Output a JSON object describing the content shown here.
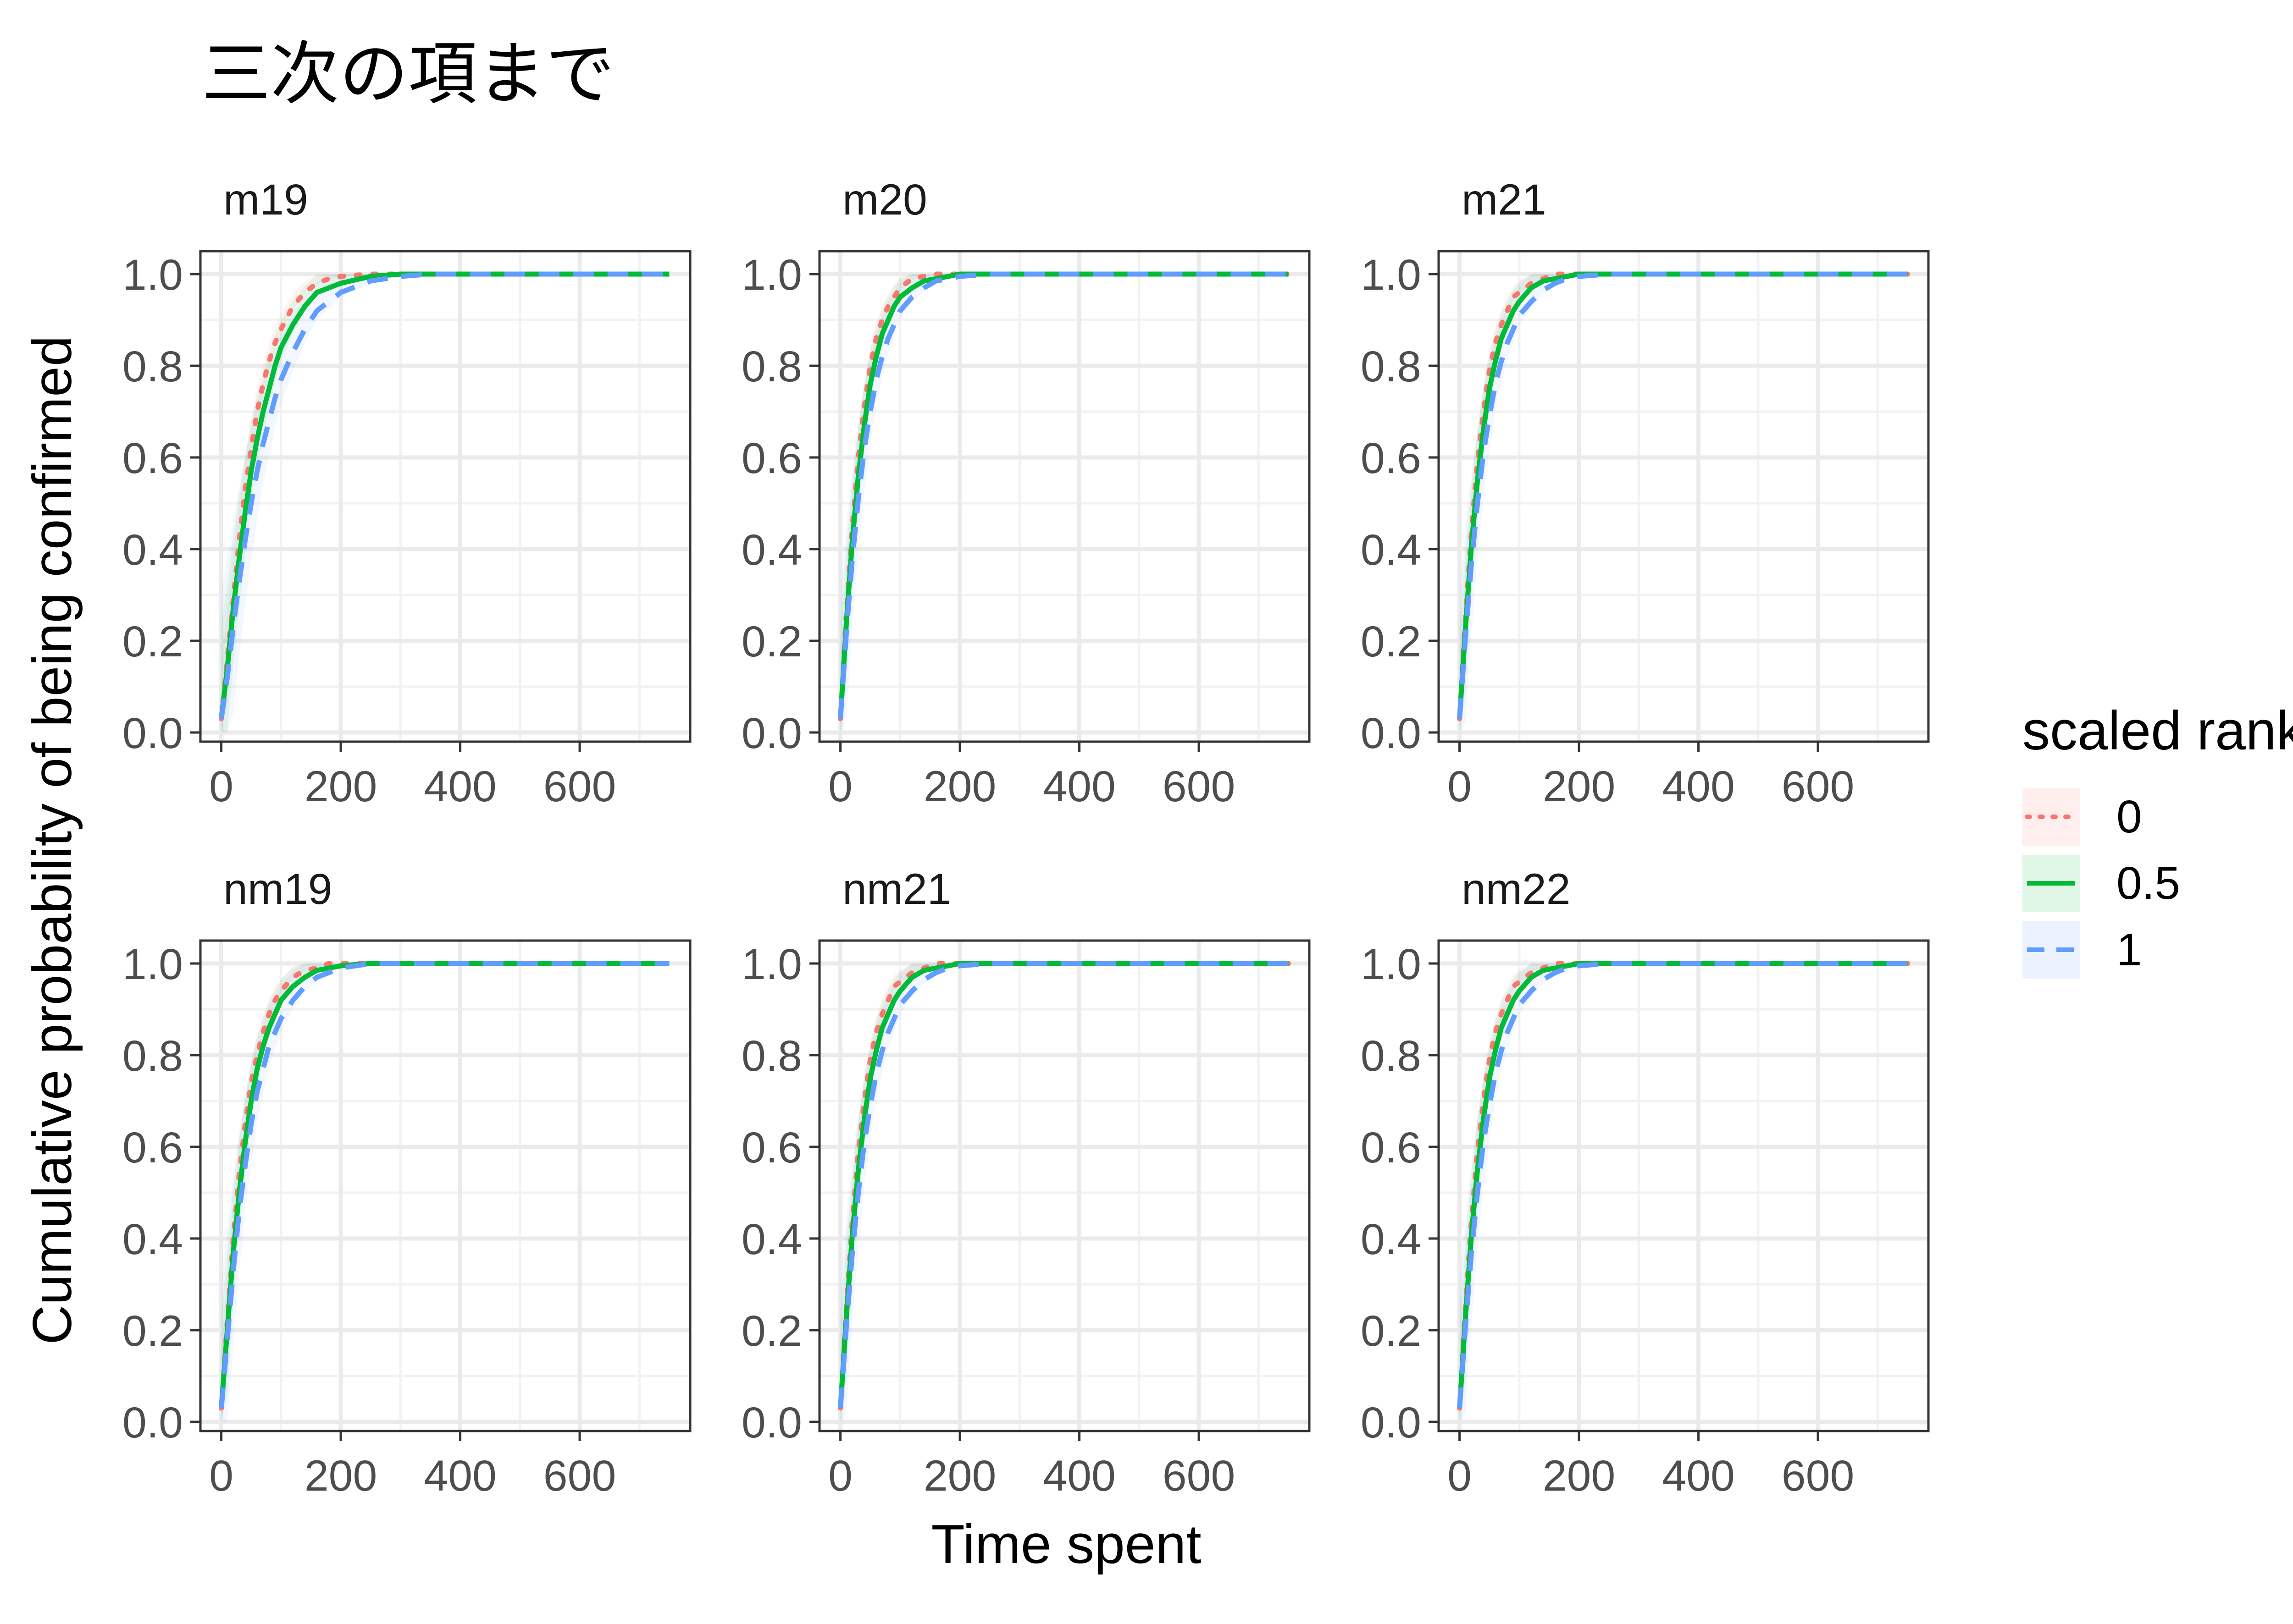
{
  "chart_data": {
    "type": "line",
    "title": "三次の項まで",
    "xlabel": "Time spent",
    "ylabel": "Cumulative probability of being confirmed",
    "xlim": [
      -35,
      785
    ],
    "ylim": [
      -0.02,
      1.05
    ],
    "x_ticks": [
      0,
      200,
      400,
      600
    ],
    "y_ticks": [
      0,
      0.2,
      0.4,
      0.6,
      0.8,
      1.0
    ],
    "x_tick_labels": [
      "0",
      "200",
      "400",
      "600"
    ],
    "y_tick_labels": [
      "0.0",
      "0.2",
      "0.4",
      "0.6",
      "0.8",
      "1.0"
    ],
    "grid": true,
    "ribbons": true,
    "legend": {
      "title": "scaled rank",
      "placement": "right",
      "entries": [
        "0",
        "0.5",
        "1"
      ]
    },
    "colors": {
      "0": "#F8766D",
      "0.5": "#00BA38",
      "1": "#619CFF"
    },
    "line_styles": {
      "0": "dotted",
      "0.5": "solid",
      "1": "dashed"
    },
    "x": [
      0,
      10,
      20,
      30,
      40,
      50,
      60,
      70,
      80,
      90,
      100,
      120,
      140,
      160,
      180,
      200,
      250,
      300,
      350,
      400,
      500,
      600,
      750
    ],
    "panels": [
      {
        "name": "m19",
        "series": [
          {
            "name": "0",
            "values": [
              0.03,
              0.16,
              0.29,
              0.42,
              0.53,
              0.62,
              0.7,
              0.76,
              0.81,
              0.85,
              0.88,
              0.93,
              0.96,
              0.98,
              0.99,
              0.995,
              1.0,
              1.0,
              1.0,
              1.0,
              1.0,
              1.0,
              1.0
            ]
          },
          {
            "name": "0.5",
            "values": [
              0.03,
              0.14,
              0.27,
              0.38,
              0.48,
              0.57,
              0.64,
              0.7,
              0.75,
              0.8,
              0.84,
              0.89,
              0.93,
              0.96,
              0.97,
              0.98,
              0.995,
              1.0,
              1.0,
              1.0,
              1.0,
              1.0,
              1.0
            ]
          },
          {
            "name": "1",
            "values": [
              0.03,
              0.12,
              0.23,
              0.33,
              0.42,
              0.5,
              0.57,
              0.63,
              0.68,
              0.73,
              0.77,
              0.83,
              0.88,
              0.92,
              0.94,
              0.96,
              0.985,
              0.995,
              1.0,
              1.0,
              1.0,
              1.0,
              1.0
            ]
          }
        ]
      },
      {
        "name": "m20",
        "series": [
          {
            "name": "0",
            "values": [
              0.03,
              0.26,
              0.45,
              0.6,
              0.71,
              0.8,
              0.86,
              0.9,
              0.93,
              0.95,
              0.97,
              0.99,
              0.995,
              1.0,
              1.0,
              1.0,
              1.0,
              1.0,
              1.0,
              1.0,
              1.0,
              1.0,
              1.0
            ]
          },
          {
            "name": "0.5",
            "values": [
              0.03,
              0.24,
              0.42,
              0.56,
              0.67,
              0.76,
              0.82,
              0.87,
              0.9,
              0.93,
              0.95,
              0.97,
              0.985,
              0.99,
              0.995,
              1.0,
              1.0,
              1.0,
              1.0,
              1.0,
              1.0,
              1.0,
              1.0
            ]
          },
          {
            "name": "1",
            "values": [
              0.03,
              0.22,
              0.38,
              0.51,
              0.62,
              0.7,
              0.77,
              0.82,
              0.86,
              0.89,
              0.92,
              0.95,
              0.97,
              0.985,
              0.99,
              0.995,
              1.0,
              1.0,
              1.0,
              1.0,
              1.0,
              1.0,
              1.0
            ]
          }
        ]
      },
      {
        "name": "m21",
        "series": [
          {
            "name": "0",
            "values": [
              0.03,
              0.25,
              0.44,
              0.59,
              0.7,
              0.79,
              0.85,
              0.89,
              0.92,
              0.95,
              0.96,
              0.98,
              0.99,
              1.0,
              1.0,
              1.0,
              1.0,
              1.0,
              1.0,
              1.0,
              1.0,
              1.0,
              1.0
            ]
          },
          {
            "name": "0.5",
            "values": [
              0.03,
              0.23,
              0.41,
              0.55,
              0.66,
              0.75,
              0.81,
              0.86,
              0.89,
              0.92,
              0.94,
              0.97,
              0.985,
              0.99,
              0.995,
              1.0,
              1.0,
              1.0,
              1.0,
              1.0,
              1.0,
              1.0,
              1.0
            ]
          },
          {
            "name": "1",
            "values": [
              0.03,
              0.21,
              0.37,
              0.5,
              0.61,
              0.69,
              0.76,
              0.81,
              0.85,
              0.88,
              0.91,
              0.94,
              0.965,
              0.98,
              0.99,
              0.995,
              1.0,
              1.0,
              1.0,
              1.0,
              1.0,
              1.0,
              1.0
            ]
          }
        ]
      },
      {
        "name": "nm19",
        "series": [
          {
            "name": "0",
            "values": [
              0.03,
              0.22,
              0.4,
              0.54,
              0.65,
              0.74,
              0.8,
              0.85,
              0.89,
              0.92,
              0.94,
              0.97,
              0.985,
              0.99,
              1.0,
              1.0,
              1.0,
              1.0,
              1.0,
              1.0,
              1.0,
              1.0,
              1.0
            ]
          },
          {
            "name": "0.5",
            "values": [
              0.03,
              0.2,
              0.37,
              0.5,
              0.61,
              0.7,
              0.77,
              0.82,
              0.86,
              0.89,
              0.92,
              0.95,
              0.97,
              0.985,
              0.99,
              0.995,
              1.0,
              1.0,
              1.0,
              1.0,
              1.0,
              1.0,
              1.0
            ]
          },
          {
            "name": "1",
            "values": [
              0.03,
              0.18,
              0.33,
              0.46,
              0.56,
              0.65,
              0.72,
              0.77,
              0.82,
              0.85,
              0.88,
              0.92,
              0.95,
              0.97,
              0.98,
              0.99,
              1.0,
              1.0,
              1.0,
              1.0,
              1.0,
              1.0,
              1.0
            ]
          }
        ]
      },
      {
        "name": "nm21",
        "series": [
          {
            "name": "0",
            "values": [
              0.03,
              0.25,
              0.44,
              0.59,
              0.7,
              0.79,
              0.85,
              0.89,
              0.92,
              0.95,
              0.96,
              0.98,
              0.99,
              1.0,
              1.0,
              1.0,
              1.0,
              1.0,
              1.0,
              1.0,
              1.0,
              1.0,
              1.0
            ]
          },
          {
            "name": "0.5",
            "values": [
              0.03,
              0.23,
              0.41,
              0.55,
              0.66,
              0.75,
              0.81,
              0.86,
              0.89,
              0.92,
              0.94,
              0.97,
              0.985,
              0.99,
              0.995,
              1.0,
              1.0,
              1.0,
              1.0,
              1.0,
              1.0,
              1.0,
              1.0
            ]
          },
          {
            "name": "1",
            "values": [
              0.03,
              0.21,
              0.37,
              0.5,
              0.61,
              0.69,
              0.76,
              0.81,
              0.85,
              0.88,
              0.91,
              0.94,
              0.965,
              0.98,
              0.99,
              0.995,
              1.0,
              1.0,
              1.0,
              1.0,
              1.0,
              1.0,
              1.0
            ]
          }
        ]
      },
      {
        "name": "nm22",
        "series": [
          {
            "name": "0",
            "values": [
              0.03,
              0.25,
              0.44,
              0.59,
              0.7,
              0.79,
              0.85,
              0.89,
              0.92,
              0.95,
              0.96,
              0.98,
              0.99,
              1.0,
              1.0,
              1.0,
              1.0,
              1.0,
              1.0,
              1.0,
              1.0,
              1.0,
              1.0
            ]
          },
          {
            "name": "0.5",
            "values": [
              0.03,
              0.23,
              0.41,
              0.55,
              0.66,
              0.75,
              0.81,
              0.86,
              0.89,
              0.92,
              0.94,
              0.97,
              0.985,
              0.99,
              0.995,
              1.0,
              1.0,
              1.0,
              1.0,
              1.0,
              1.0,
              1.0,
              1.0
            ]
          },
          {
            "name": "1",
            "values": [
              0.03,
              0.21,
              0.37,
              0.5,
              0.61,
              0.69,
              0.76,
              0.81,
              0.85,
              0.88,
              0.91,
              0.94,
              0.965,
              0.98,
              0.99,
              0.995,
              1.0,
              1.0,
              1.0,
              1.0,
              1.0,
              1.0,
              1.0
            ]
          }
        ]
      }
    ]
  }
}
